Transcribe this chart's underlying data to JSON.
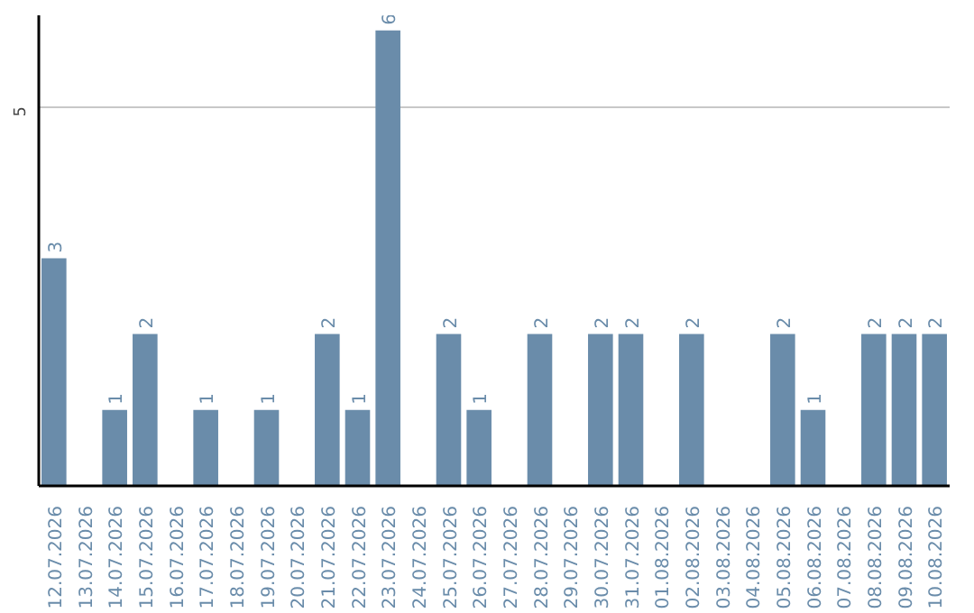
{
  "chart_data": {
    "type": "bar",
    "categories": [
      "12.07.2026",
      "13.07.2026",
      "14.07.2026",
      "15.07.2026",
      "16.07.2026",
      "17.07.2026",
      "18.07.2026",
      "19.07.2026",
      "20.07.2026",
      "21.07.2026",
      "22.07.2026",
      "23.07.2026",
      "24.07.2026",
      "25.07.2026",
      "26.07.2026",
      "27.07.2026",
      "28.07.2026",
      "29.07.2026",
      "30.07.2026",
      "31.07.2026",
      "01.08.2026",
      "02.08.2026",
      "03.08.2026",
      "04.08.2026",
      "05.08.2026",
      "06.08.2026",
      "07.08.2026",
      "08.08.2026",
      "09.08.2026",
      "10.08.2026"
    ],
    "values": [
      3,
      0,
      1,
      2,
      0,
      1,
      0,
      1,
      0,
      2,
      1,
      6,
      0,
      2,
      1,
      0,
      2,
      0,
      2,
      2,
      0,
      2,
      0,
      0,
      2,
      1,
      0,
      2,
      2,
      2
    ],
    "value_labels": [
      "3",
      null,
      "1",
      "2",
      null,
      "1",
      null,
      "1",
      null,
      "2",
      "1",
      "6",
      null,
      "2",
      "1",
      null,
      "2",
      null,
      "2",
      "2",
      null,
      "2",
      null,
      null,
      "2",
      "1",
      null,
      "2",
      "2",
      "2"
    ],
    "color": "#6a8caa",
    "ylim": [
      0,
      6.2
    ],
    "yticks": [
      5
    ],
    "grid": "y"
  }
}
